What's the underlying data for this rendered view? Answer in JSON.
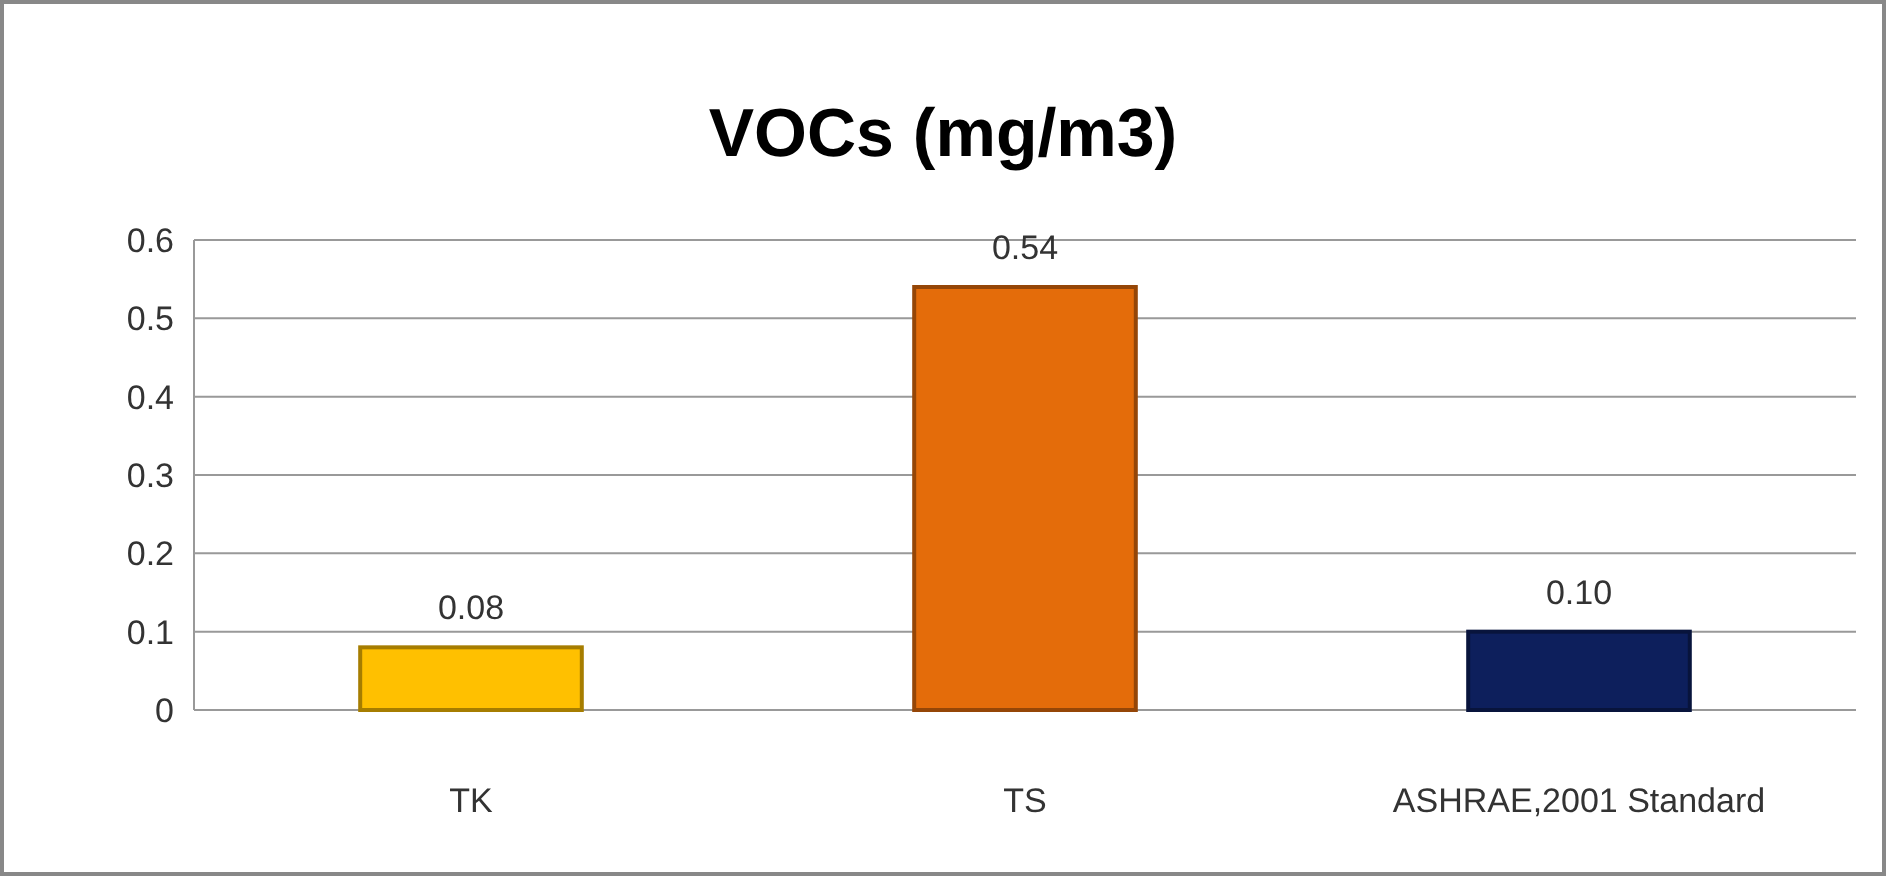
{
  "chart_data": {
    "type": "bar",
    "title": "VOCs (mg/m3)",
    "categories": [
      "TK",
      "TS",
      "ASHRAE,2001 Standard"
    ],
    "values": [
      0.08,
      0.54,
      0.1
    ],
    "colors": [
      "#ffc000",
      "#e46c0a",
      "#0d1f5c"
    ],
    "value_labels": [
      "0.08",
      "0.54",
      "0.10"
    ],
    "ylim": [
      0,
      0.6
    ],
    "yticks": [
      0,
      0.1,
      0.2,
      0.3,
      0.4,
      0.5,
      0.6
    ],
    "grid": "y"
  }
}
